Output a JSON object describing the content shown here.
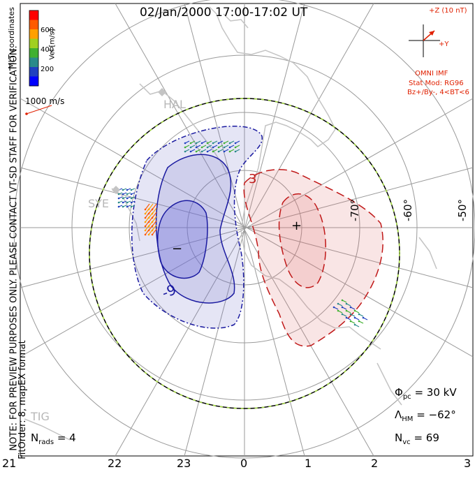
{
  "title": "02/Jan/2000 17:00-17:02 UT",
  "coordinates_label": "MLT coordinates",
  "colorbar": {
    "label": "Vel [m/s]",
    "ticks": [
      "600",
      "400",
      "200"
    ],
    "colors": [
      "#ff0000",
      "#ff5a00",
      "#ffa000",
      "#a0d020",
      "#40b030",
      "#2a8a8a",
      "#2040c0",
      "#0000ff"
    ]
  },
  "scale_vector": "1000 m/s",
  "imf": {
    "bz_label": "+Z (10 nT)",
    "by_label": "+Y",
    "source": "OMNI IMF",
    "model": "Stat Mod: RG96",
    "condition": "Bz+/By-, 4<BT<6"
  },
  "vertical_note": "NOTE: FOR PREVIEW PURPOSES ONLY. PLEASE CONTACT VT-SD STAFF FOR VERIFICATION.",
  "fit_note": "FitOrder: 8, mapEX format",
  "stations": [
    "HAL",
    "SYE",
    "TIG"
  ],
  "latitude_labels": [
    "-70°",
    "-60°",
    "-50°"
  ],
  "contours": {
    "negative_label": "-9",
    "positive_label": "3",
    "min_symbol": "−",
    "max_symbol": "+"
  },
  "stats": {
    "phi_symbol": "Φ",
    "phi_sub": "pc",
    "phi_value": "= 30 kV",
    "lambda_symbol": "Λ",
    "lambda_sub": "HM",
    "lambda_value": "= −62°",
    "nvc_symbol": "N",
    "nvc_sub": "vc",
    "nvc_value": "= 69",
    "nrads_symbol": "N",
    "nrads_sub": "rads",
    "nrads_value": "= 4"
  },
  "mlt_axis": [
    "21",
    "22",
    "23",
    "0",
    "1",
    "2",
    "3"
  ],
  "colors": {
    "negative": "#1a1aa0",
    "positive": "#c01818",
    "hmb_dash": "#a8e040",
    "coast": "#c4c4c4",
    "grid": "#9a9a9a"
  }
}
